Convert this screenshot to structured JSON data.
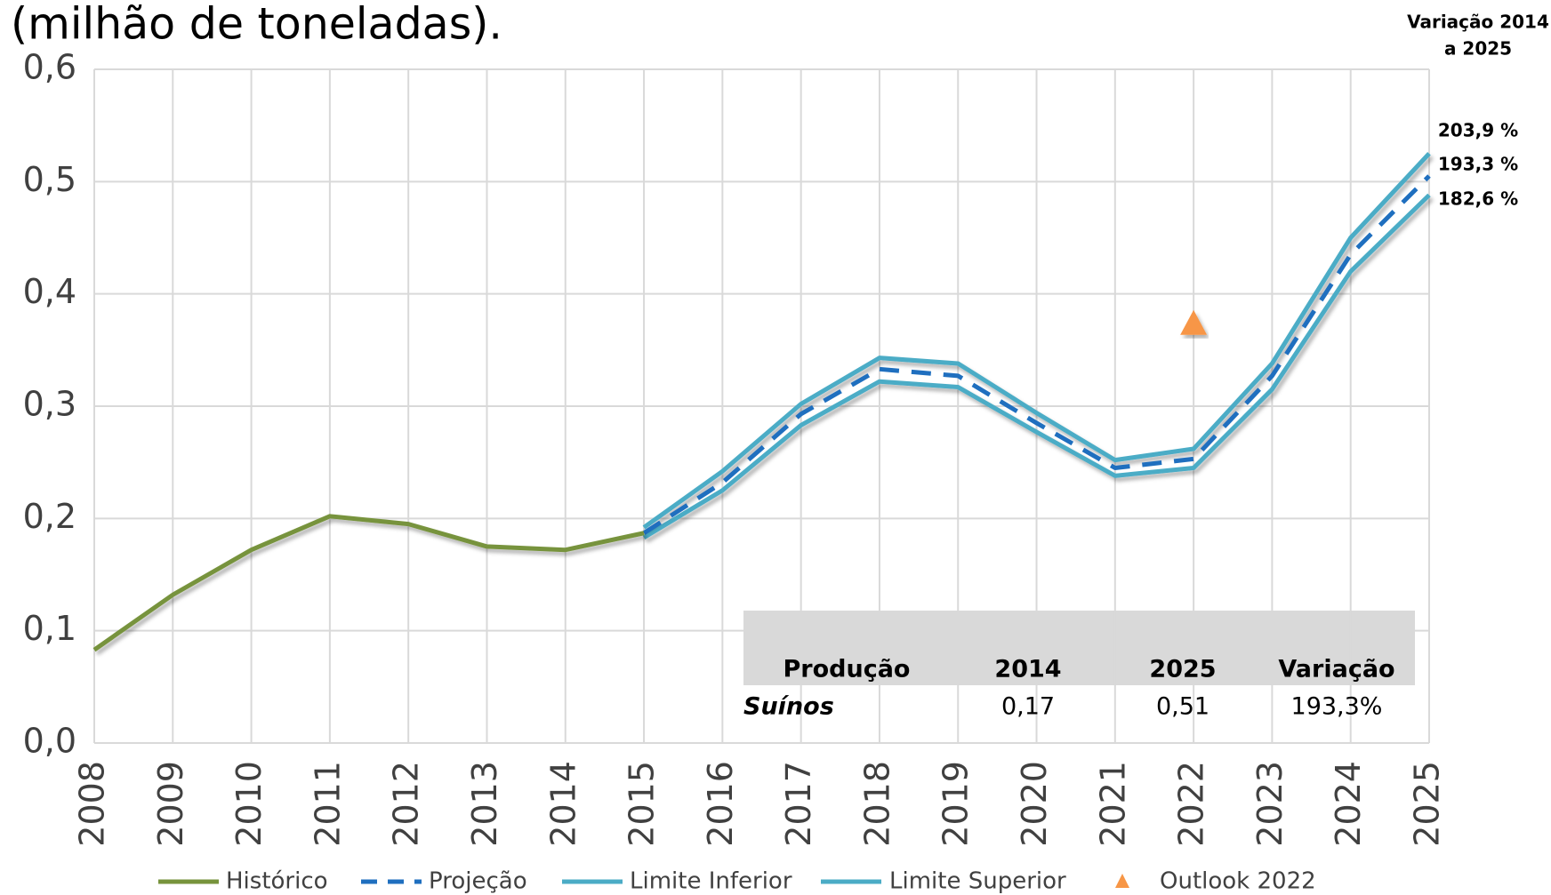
{
  "chart_data": {
    "type": "line",
    "title": "(milhão de toneladas).",
    "categories": [
      "2008",
      "2009",
      "2010",
      "2011",
      "2012",
      "2013",
      "2014",
      "2015",
      "2016",
      "2017",
      "2018",
      "2019",
      "2020",
      "2021",
      "2022",
      "2023",
      "2024",
      "2025"
    ],
    "series": [
      {
        "name": "Histórico",
        "color": "#77933c",
        "style": "solid",
        "values": [
          0.083,
          0.132,
          0.172,
          0.202,
          0.195,
          0.175,
          0.172,
          0.187,
          null,
          null,
          null,
          null,
          null,
          null,
          null,
          null,
          null,
          null
        ]
      },
      {
        "name": "Projeção",
        "color": "#1f6fbf",
        "style": "dashed",
        "values": [
          null,
          null,
          null,
          null,
          null,
          null,
          null,
          0.187,
          0.232,
          0.293,
          0.333,
          0.327,
          0.285,
          0.245,
          0.253,
          0.327,
          0.435,
          0.505
        ]
      },
      {
        "name": "Limite Inferior",
        "color": "#4bacc6",
        "style": "solid",
        "values": [
          null,
          null,
          null,
          null,
          null,
          null,
          null,
          0.183,
          0.225,
          0.283,
          0.322,
          0.317,
          0.277,
          0.238,
          0.245,
          0.315,
          0.42,
          0.488
        ]
      },
      {
        "name": "Limite Superior",
        "color": "#4bacc6",
        "style": "solid",
        "values": [
          null,
          null,
          null,
          null,
          null,
          null,
          null,
          0.192,
          0.242,
          0.302,
          0.343,
          0.338,
          0.294,
          0.252,
          0.262,
          0.338,
          0.45,
          0.525
        ]
      },
      {
        "name": "Outlook 2022",
        "color": "#f79646",
        "style": "marker",
        "values": [
          null,
          null,
          null,
          null,
          null,
          null,
          null,
          null,
          null,
          null,
          null,
          null,
          null,
          null,
          0.373,
          null,
          null,
          null
        ]
      }
    ],
    "ylim": [
      0,
      0.6
    ],
    "yticks": [
      {
        "value": 0,
        "label": "0,0"
      },
      {
        "value": 0.1,
        "label": "0,1"
      },
      {
        "value": 0.2,
        "label": "0,2"
      },
      {
        "value": 0.3,
        "label": "0,3"
      },
      {
        "value": 0.4,
        "label": "0,4"
      },
      {
        "value": 0.5,
        "label": "0,5"
      },
      {
        "value": 0.6,
        "label": "0,6"
      }
    ],
    "grid": true,
    "legend": "bottom",
    "annotation": [
      "Variação 2014",
      "a 2025"
    ],
    "end_labels": [
      "203,9 %",
      "193,3 %",
      "182,6 %"
    ],
    "table": {
      "header": [
        "Produção",
        "2014",
        "2025",
        "Variação"
      ],
      "rows": [
        [
          "Suínos",
          "0,17",
          "0,51",
          "193,3%"
        ]
      ]
    }
  }
}
